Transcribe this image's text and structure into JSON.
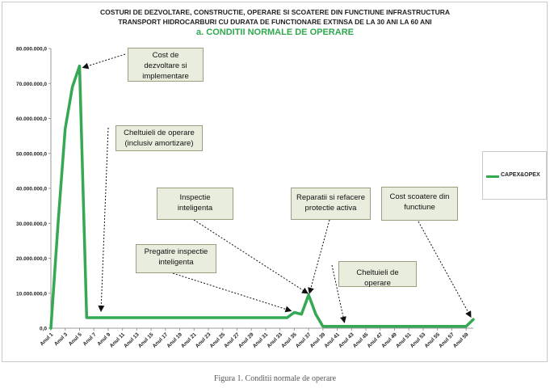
{
  "chart_data": {
    "type": "line",
    "title_lines": [
      "COSTURI DE DEZVOLTARE, CONSTRUCTIE, OPERARE SI SCOATERE DIN FUNCTIUNE INFRASTRUCTURA",
      "TRANSPORT HIDROCARBURI CU DURATA DE FUNCTIONARE EXTINSA DE LA 30 ANI LA 60 ANI"
    ],
    "subtitle": "a. CONDITII NORMALE DE OPERARE",
    "xlabel": "",
    "ylabel": "",
    "ylim": [
      0,
      80000000
    ],
    "yticks": [
      "0,0",
      "10.000.000,0",
      "20.000.000,0",
      "30.000.000,0",
      "40.000.000,0",
      "50.000.000,0",
      "60.000.000,0",
      "70.000.000,0",
      "80.000.000,0"
    ],
    "xticks": [
      "Anul 1",
      "Anul 3",
      "Anul 5",
      "Anul 7",
      "Anul 9",
      "Anul 11",
      "Anul 13",
      "Anul 15",
      "Anul 17",
      "Anul 19",
      "Anul 21",
      "Anul 23",
      "Anul 25",
      "Anul 27",
      "Anul 29",
      "Anul 31",
      "Anul 33",
      "Anul 35",
      "Anul 37",
      "Anul 39",
      "Anul 41",
      "Anul 43",
      "Anul 45",
      "Anul 47",
      "Anul 49",
      "Anul 51",
      "Anul 53",
      "Anul 55",
      "Anul 57",
      "Anul 59"
    ],
    "legend_position": "right",
    "series": [
      {
        "name": "CAPEX&OPEX",
        "color": "#34a853",
        "x": [
          1,
          2,
          3,
          4,
          5,
          6,
          7,
          8,
          9,
          10,
          11,
          12,
          13,
          14,
          15,
          16,
          17,
          18,
          19,
          20,
          21,
          22,
          23,
          24,
          25,
          26,
          27,
          28,
          29,
          30,
          31,
          32,
          33,
          34,
          35,
          36,
          37,
          38,
          39,
          40,
          41,
          42,
          43,
          44,
          45,
          46,
          47,
          48,
          49,
          50,
          51,
          52,
          53,
          54,
          55,
          56,
          57,
          58,
          59,
          60
        ],
        "values": [
          0,
          30000000,
          57000000,
          69000000,
          75000000,
          3000000,
          3000000,
          3000000,
          3000000,
          3000000,
          3000000,
          3000000,
          3000000,
          3000000,
          3000000,
          3000000,
          3000000,
          3000000,
          3000000,
          3000000,
          3000000,
          3000000,
          3000000,
          3000000,
          3000000,
          3000000,
          3000000,
          3000000,
          3000000,
          3000000,
          3000000,
          3000000,
          3000000,
          3000000,
          4500000,
          4000000,
          9500000,
          4000000,
          500000,
          500000,
          500000,
          500000,
          500000,
          500000,
          500000,
          500000,
          500000,
          500000,
          500000,
          500000,
          500000,
          500000,
          500000,
          500000,
          500000,
          500000,
          500000,
          500000,
          500000,
          2500000
        ]
      }
    ],
    "annotations": [
      {
        "id": "cost-dezvoltare",
        "text": [
          "Cost de",
          "dezvoltare si",
          "implementare"
        ]
      },
      {
        "id": "cheltuieli-operare",
        "text": [
          "Cheltuieli de operare",
          "(inclusiv amortizare)"
        ]
      },
      {
        "id": "inspectie",
        "text": [
          "Inspectie",
          "inteligenta"
        ]
      },
      {
        "id": "reparatii",
        "text": [
          "Reparatii si refacere",
          "protectie activa"
        ]
      },
      {
        "id": "scoatere",
        "text": [
          "Cost scoatere din",
          "functiune"
        ]
      },
      {
        "id": "pregatire",
        "text": [
          "Pregatire inspectie",
          "inteligenta"
        ]
      },
      {
        "id": "cheltuieli-operare-2",
        "text": [
          "Cheltuieli de operare"
        ]
      }
    ]
  },
  "caption": "Figura 1. Conditii normale de operare"
}
